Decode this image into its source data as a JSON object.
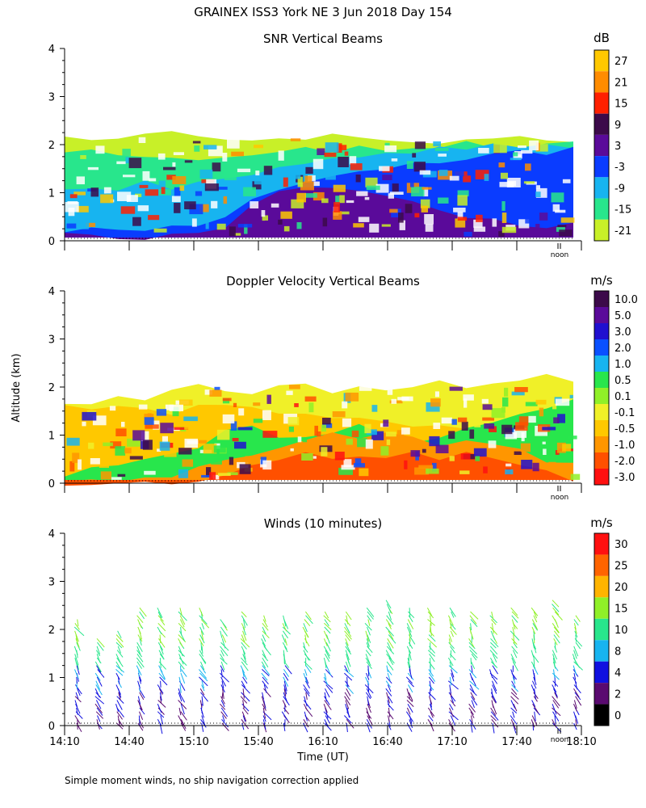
{
  "header": {
    "title": "GRAINEX ISS3 York NE    3 Jun 2018 Day 154"
  },
  "footer": {
    "note": "Simple moment winds, no ship navigation correction applied"
  },
  "shared": {
    "ylabel": "Altitude (km)",
    "xlabel": "Time (UT)",
    "xticks": [
      "14:10",
      "14:40",
      "15:10",
      "15:40",
      "16:10",
      "16:40",
      "17:10",
      "17:40",
      "18:10"
    ],
    "yticks": [
      "0",
      "1",
      "2",
      "3",
      "4"
    ],
    "noon_label": "noon"
  },
  "chart_data": [
    {
      "type": "heatmap",
      "title": "SNR Vertical Beams",
      "unit": "dB",
      "ylim": [
        0,
        4
      ],
      "colorbar": {
        "labels": [
          "27",
          "21",
          "15",
          "9",
          "3",
          "-3",
          "-9",
          "-15",
          "-21"
        ],
        "colors": [
          "#ffc800",
          "#ff8c00",
          "#ff2000",
          "#3c0a4a",
          "#5a0a9a",
          "#0a3cff",
          "#17b4f0",
          "#28e68c",
          "#c8f028"
        ]
      },
      "layers": [
        {
          "level": "-21",
          "color": "#c8f028",
          "top_km": [
            2.1,
            2.15,
            2.2,
            2.15,
            2.2,
            2.1,
            2.15,
            2.1,
            2.2,
            2.15,
            2.2,
            2.1,
            2.05,
            2.1,
            2.1,
            2.05,
            2.1,
            2.1,
            2.05,
            2.0
          ]
        },
        {
          "level": "-15",
          "color": "#28e68c",
          "top_km": [
            1.9,
            1.85,
            1.85,
            1.7,
            1.8,
            1.75,
            1.7,
            1.8,
            1.85,
            1.9,
            1.9,
            1.95,
            1.95,
            2.0,
            2.0,
            2.0,
            2.0,
            2.0,
            2.0,
            2.0
          ]
        },
        {
          "level": "-9",
          "color": "#17b4f0",
          "top_km": [
            1.1,
            1.1,
            1.0,
            1.2,
            1.15,
            1.2,
            1.3,
            1.4,
            1.55,
            1.6,
            1.7,
            1.75,
            1.8,
            1.85,
            1.9,
            1.9,
            1.95,
            1.95,
            1.95,
            1.95
          ]
        },
        {
          "level": "-3",
          "color": "#0a3cff",
          "top_km": [
            0.25,
            0.25,
            0.25,
            0.2,
            0.25,
            0.25,
            0.5,
            0.8,
            1.0,
            1.2,
            1.3,
            1.4,
            1.5,
            1.55,
            1.65,
            1.7,
            1.8,
            1.85,
            1.85,
            1.9
          ]
        },
        {
          "level": "3",
          "color": "#5a0a9a",
          "top_km": [
            0.15,
            0.15,
            0.1,
            0.1,
            0.15,
            0.2,
            0.3,
            0.7,
            1.0,
            1.1,
            1.15,
            1.05,
            0.9,
            0.8,
            0.6,
            0.5,
            0.4,
            0.3,
            0.3,
            0.3
          ]
        }
      ]
    },
    {
      "type": "heatmap",
      "title": "Doppler Velocity Vertical Beams",
      "unit": "m/s",
      "ylim": [
        0,
        4
      ],
      "colorbar": {
        "labels": [
          "10.0",
          "5.0",
          "3.0",
          "2.0",
          "1.0",
          "0.5",
          "0.1",
          "-0.1",
          "-0.5",
          "-1.0",
          "-2.0",
          "-3.0"
        ],
        "colors": [
          "#3c0a4a",
          "#5a0a9a",
          "#2010d0",
          "#0a50ff",
          "#17b4f0",
          "#28e64c",
          "#90f028",
          "#f0f028",
          "#ffc800",
          "#ff9600",
          "#ff5000",
          "#ff1010"
        ]
      },
      "layers": [
        {
          "level": "-0.1",
          "color": "#f0f028",
          "top_km": [
            1.65,
            1.7,
            1.75,
            1.7,
            1.9,
            2.05,
            1.95,
            1.9,
            2.05,
            2.0,
            1.9,
            2.05,
            2.0,
            1.95,
            2.1,
            2.0,
            2.05,
            2.15,
            2.2,
            2.1
          ]
        },
        {
          "level": "-0.5",
          "color": "#ffc800",
          "top_km": [
            1.6,
            1.6,
            1.55,
            1.5,
            1.5,
            1.6,
            1.55,
            1.5,
            1.45,
            1.4,
            1.4,
            1.35,
            1.3,
            1.25,
            1.2,
            1.15,
            1.1,
            1.0,
            0.95,
            0.9
          ]
        },
        {
          "level": "0.5",
          "color": "#28e64c",
          "top_km": [
            0.2,
            0.3,
            0.4,
            0.5,
            0.6,
            0.8,
            1.1,
            1.2,
            1.0,
            0.9,
            1.1,
            1.2,
            0.9,
            0.8,
            1.0,
            1.1,
            1.3,
            1.4,
            1.6,
            1.7
          ]
        },
        {
          "level": "-1.0",
          "color": "#ff9600",
          "top_km": [
            0.0,
            0.0,
            0.1,
            0.2,
            0.2,
            0.3,
            0.5,
            0.6,
            0.8,
            0.9,
            1.0,
            0.9,
            1.0,
            0.9,
            0.8,
            0.9,
            0.8,
            0.7,
            0.5,
            0.4
          ]
        },
        {
          "level": "-2.0",
          "color": "#ff5000",
          "top_km": [
            0.0,
            0.0,
            0.0,
            0.0,
            0.0,
            0.1,
            0.2,
            0.3,
            0.4,
            0.6,
            0.5,
            0.6,
            0.5,
            0.6,
            0.5,
            0.6,
            0.5,
            0.4,
            0.2,
            0.1
          ]
        }
      ]
    },
    {
      "type": "scatter",
      "title": "Winds (10 minutes)",
      "unit": "m/s",
      "ylim": [
        0,
        4
      ],
      "colorbar": {
        "labels": [
          "30",
          "25",
          "20",
          "15",
          "10",
          "8",
          "4",
          "2",
          "0"
        ],
        "colors": [
          "#ff1010",
          "#ff6400",
          "#ffb400",
          "#90f028",
          "#28e68c",
          "#17b4f0",
          "#1010e0",
          "#5a0a70",
          "#000000"
        ]
      },
      "profiles_top_km": [
        2.2,
        1.8,
        2.0,
        2.5,
        2.5,
        2.5,
        2.5,
        2.2,
        2.4,
        2.3,
        2.3,
        2.4,
        2.4,
        2.4,
        2.5,
        2.6,
        2.5,
        2.5,
        2.5,
        2.4,
        2.4,
        2.5,
        2.5,
        2.6,
        2.3
      ]
    }
  ]
}
